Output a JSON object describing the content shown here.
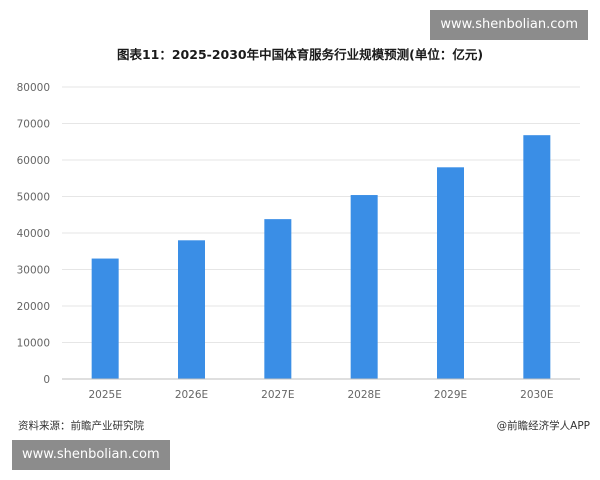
{
  "watermark_top": "www.shenbolian.com",
  "watermark_bottom": "www.shenbolian.com",
  "footer": {
    "source": "资料来源：前瞻产业研究院",
    "credit": "@前瞻经济学人APP"
  },
  "colors": {
    "bar": "#3a8ee6",
    "grid": "#e6e6e6",
    "axis": "#bfbfbf"
  },
  "chart_data": {
    "type": "bar",
    "title": "图表11：2025-2030年中国体育服务行业规模预测(单位：亿元)",
    "categories": [
      "2025E",
      "2026E",
      "2027E",
      "2028E",
      "2029E",
      "2030E"
    ],
    "values": [
      33000,
      38000,
      43800,
      50400,
      58000,
      66800
    ],
    "ylim": [
      0,
      80000
    ],
    "yticks": [
      "0",
      "10000",
      "20000",
      "30000",
      "40000",
      "50000",
      "60000",
      "70000",
      "80000"
    ],
    "grid": true
  }
}
